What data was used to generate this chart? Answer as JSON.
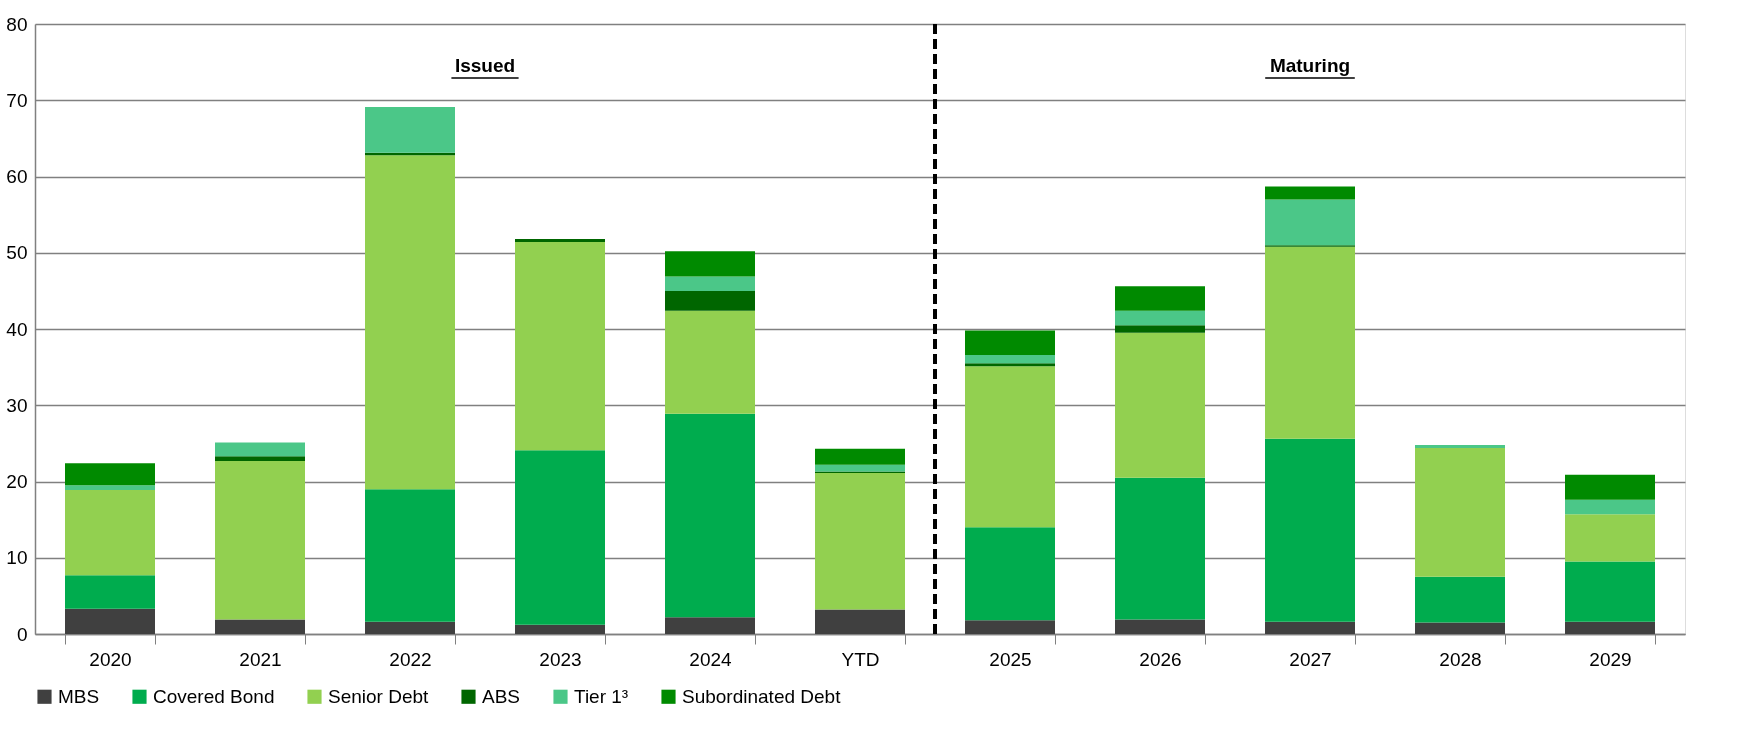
{
  "chart_data": {
    "type": "bar",
    "stacked": true,
    "categories": [
      "2020",
      "2021",
      "2022",
      "2023",
      "2024",
      "YTD",
      "2025",
      "2026",
      "2027",
      "2028",
      "2029"
    ],
    "series": [
      {
        "name": "MBS",
        "color": "#404040",
        "values": [
          3.3,
          1.9,
          1.6,
          1.2,
          2.2,
          3.2,
          1.8,
          1.9,
          1.6,
          1.5,
          1.6
        ]
      },
      {
        "name": "Covered Bond",
        "color": "#00ac4e",
        "values": [
          4.4,
          0,
          17.4,
          22.9,
          26.7,
          0,
          12.2,
          18.6,
          24.0,
          6.0,
          7.9
        ]
      },
      {
        "name": "Senior Debt",
        "color": "#92d050",
        "values": [
          11.2,
          20.8,
          43.8,
          27.3,
          13.5,
          17.9,
          21.1,
          19.0,
          25.2,
          16.9,
          6.2
        ]
      },
      {
        "name": "ABS",
        "color": "#006600",
        "values": [
          0,
          0.6,
          0.3,
          0.4,
          2.6,
          0.2,
          0.4,
          1.0,
          0.2,
          0,
          0
        ]
      },
      {
        "name": "Tier 1³",
        "color": "#4bc788",
        "values": [
          0.6,
          1.8,
          6.0,
          0,
          1.9,
          0.9,
          1.1,
          1.9,
          6.0,
          0.4,
          1.9
        ]
      },
      {
        "name": "Subordinated Debt",
        "color": "#008a00",
        "values": [
          2.9,
          0,
          0,
          0,
          3.3,
          2.1,
          3.2,
          3.2,
          1.7,
          0,
          3.3
        ]
      }
    ],
    "ylim": [
      0,
      80
    ],
    "yticks": [
      0,
      10,
      20,
      30,
      40,
      50,
      60,
      70,
      80
    ],
    "grid": "y",
    "legend": "bottom",
    "ref_lines": [
      {
        "axis": "x",
        "value": "2025",
        "color": "#000000",
        "line_style": "dashed"
      }
    ],
    "annotations": [
      "Issued",
      "Maturing"
    ]
  }
}
